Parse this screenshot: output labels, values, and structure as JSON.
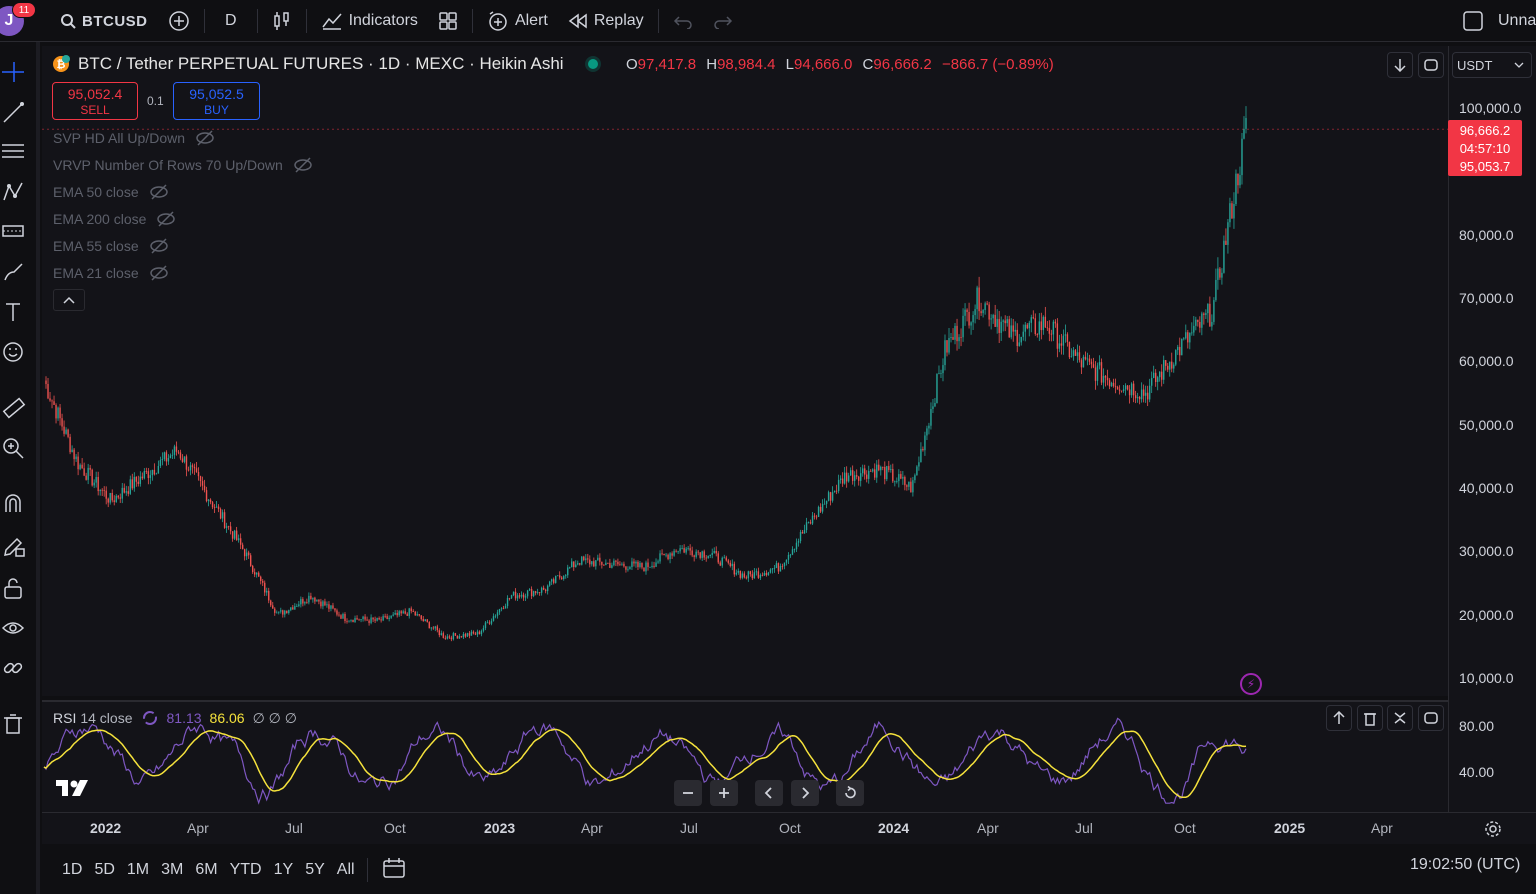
{
  "topbar": {
    "avatar_letter": "J",
    "notif_count": "11",
    "symbol": "BTCUSD",
    "interval": "D",
    "indicators_label": "Indicators",
    "alert_label": "Alert",
    "replay_label": "Replay",
    "layout_name": "Unna"
  },
  "legend": {
    "title": "BTC / Tether PERPETUAL FUTURES · 1D · MEXC · Heikin Ashi",
    "o_label": "O",
    "o": "97,417.8",
    "h_label": "H",
    "h": "98,984.4",
    "l_label": "L",
    "l": "94,666.0",
    "c_label": "C",
    "c": "96,666.2",
    "change": "−866.7 (−0.89%)"
  },
  "trade": {
    "sell_price": "95,052.4",
    "sell_label": "SELL",
    "qty": "0.1",
    "buy_price": "95,052.5",
    "buy_label": "BUY"
  },
  "indicators": [
    "SVP HD All Up/Down",
    "VRVP Number Of Rows 70 Up/Down",
    "EMA 50 close",
    "EMA 200 close",
    "EMA 55 close",
    "EMA 21 close"
  ],
  "price_axis": {
    "currency": "USDT",
    "labels": [
      "100,000.0",
      "80,000.0",
      "70,000.0",
      "60,000.0",
      "50,000.0",
      "40,000.0",
      "30,000.0",
      "20,000.0",
      "10,000.0"
    ],
    "tag_price": "96,666.2",
    "tag_countdown": "04:57:10",
    "tag_bid": "95,053.7"
  },
  "rsi": {
    "label": "RSI",
    "params": "14 close",
    "value1": "81.13",
    "value2": "86.06",
    "extras": "∅ ∅ ∅",
    "axis_labels": [
      "80.00",
      "40.00"
    ]
  },
  "time_axis": {
    "labels": [
      "2022",
      "Apr",
      "Jul",
      "Oct",
      "2023",
      "Apr",
      "Jul",
      "Oct",
      "2024",
      "Apr",
      "Jul",
      "Oct",
      "2025",
      "Apr"
    ]
  },
  "bottombar": {
    "ranges": [
      "1D",
      "5D",
      "1M",
      "3M",
      "6M",
      "YTD",
      "1Y",
      "5Y",
      "All"
    ],
    "clock": "19:02:50 (UTC)"
  },
  "colors": {
    "up": "#26a69a",
    "down": "#ef5350",
    "rsi_line": "#7e57c2",
    "rsi_ma": "#f5e23c",
    "accent_red": "#f23645"
  },
  "chart_data": {
    "type": "candlestick",
    "x_unit": "month",
    "x": [
      "2021-12",
      "2022-01",
      "2022-02",
      "2022-03",
      "2022-04",
      "2022-05",
      "2022-06",
      "2022-07",
      "2022-08",
      "2022-09",
      "2022-10",
      "2022-11",
      "2022-12",
      "2023-01",
      "2023-02",
      "2023-03",
      "2023-04",
      "2023-05",
      "2023-06",
      "2023-07",
      "2023-08",
      "2023-09",
      "2023-10",
      "2023-11",
      "2023-12",
      "2024-01",
      "2024-02",
      "2024-03",
      "2024-04",
      "2024-05",
      "2024-06",
      "2024-07",
      "2024-08",
      "2024-09",
      "2024-10",
      "2024-11"
    ],
    "close": [
      57000,
      44000,
      38000,
      42000,
      46000,
      38000,
      30000,
      20000,
      23000,
      19500,
      19000,
      20500,
      16500,
      17000,
      23000,
      24000,
      28500,
      28000,
      27500,
      30500,
      29500,
      26000,
      27500,
      35000,
      42000,
      43000,
      40000,
      62000,
      70000,
      64000,
      66000,
      60000,
      57000,
      55000,
      62000,
      68000
    ],
    "last_close": 96666.2,
    "ylim": [
      10000,
      100000
    ],
    "rsi_ylim": [
      20,
      95
    ]
  }
}
